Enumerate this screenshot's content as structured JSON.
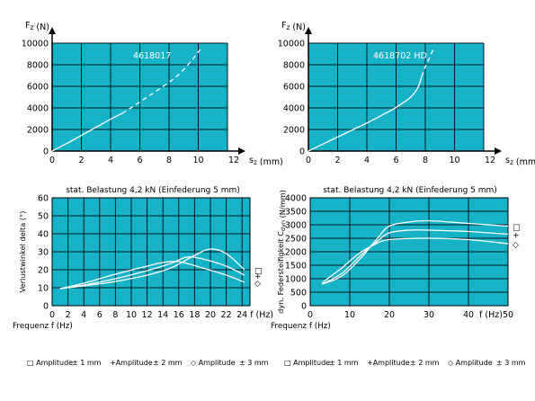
{
  "colors": {
    "plot_bg": "#16b2c8",
    "grid": "#0a1a20",
    "axis": "#000000",
    "curve": "#ffffff",
    "text": "#000000"
  },
  "legend_text": {
    "left": [
      "□ Amplitude",
      "± 1 mm",
      "+Amplitude",
      "± 2 mm",
      "◇ Amplitude",
      "± 3 mm"
    ],
    "right": [
      "□ Amplitude",
      "± 1 mm",
      "+Amplitude",
      "± 2 mm",
      "◇ Amplitude",
      "± 3 mm"
    ]
  },
  "chart_data": [
    {
      "type": "line",
      "ylabel": "F_z (N)",
      "xlabel": "s_z (mm)",
      "annotation": "4618017",
      "xlim": [
        0,
        12
      ],
      "ylim": [
        0,
        10000
      ],
      "xticks": [
        0,
        2,
        4,
        6,
        8,
        10,
        12
      ],
      "yticks": [
        0,
        2000,
        4000,
        6000,
        8000,
        10000
      ],
      "series": [
        {
          "style": "solid",
          "points": [
            [
              0,
              0
            ],
            [
              1,
              700
            ],
            [
              2,
              1450
            ],
            [
              3,
              2200
            ],
            [
              4,
              2950
            ],
            [
              4.8,
              3500
            ]
          ]
        },
        {
          "style": "dashed",
          "points": [
            [
              4.8,
              3500
            ],
            [
              5.5,
              4100
            ],
            [
              6.5,
              5000
            ],
            [
              7.5,
              5900
            ],
            [
              8.5,
              6900
            ],
            [
              9.3,
              8000
            ],
            [
              9.9,
              9000
            ],
            [
              10.3,
              9700
            ]
          ]
        }
      ]
    },
    {
      "type": "line",
      "ylabel": "F_z (N)",
      "xlabel": "s_z (mm)",
      "annotation": "4618702 HD",
      "xlim": [
        0,
        12
      ],
      "ylim": [
        0,
        10000
      ],
      "xticks": [
        0,
        2,
        4,
        6,
        8,
        10,
        12
      ],
      "yticks": [
        0,
        2000,
        4000,
        6000,
        8000,
        10000
      ],
      "series": [
        {
          "style": "solid",
          "points": [
            [
              0,
              0
            ],
            [
              1,
              650
            ],
            [
              2,
              1300
            ],
            [
              3,
              1950
            ],
            [
              4,
              2600
            ],
            [
              5,
              3300
            ],
            [
              6,
              4050
            ],
            [
              7,
              5000
            ],
            [
              7.5,
              5900
            ],
            [
              7.75,
              6900
            ]
          ]
        },
        {
          "style": "dashed",
          "points": [
            [
              7.75,
              6900
            ],
            [
              8.0,
              7800
            ],
            [
              8.3,
              8700
            ],
            [
              8.6,
              9600
            ]
          ]
        }
      ]
    },
    {
      "type": "line",
      "title": "stat. Belastung 4,2 kN (Einfederung 5 mm)",
      "ylabel": "Verlustwinkel delta (°)",
      "xlabel": "Frequenz f (Hz)",
      "xunit": "f (Hz)",
      "xlim": [
        0,
        25
      ],
      "ylim": [
        0,
        60
      ],
      "xticks": [
        0,
        2,
        4,
        6,
        8,
        10,
        12,
        14,
        16,
        18,
        20,
        22,
        24
      ],
      "yticks": [
        0,
        10,
        20,
        30,
        40,
        50,
        60
      ],
      "end_markers": [
        "□",
        "+",
        "◇"
      ],
      "series": [
        {
          "name": "Amplitude ± 1 mm",
          "points": [
            [
              1,
              9.5
            ],
            [
              4,
              11
            ],
            [
              8,
              13.5
            ],
            [
              12,
              17
            ],
            [
              15,
              21
            ],
            [
              18,
              28
            ],
            [
              20,
              31.5
            ],
            [
              22,
              29
            ],
            [
              24.3,
              20
            ]
          ]
        },
        {
          "name": "Amplitude ± 2 mm",
          "points": [
            [
              1,
              9.5
            ],
            [
              4,
              11.5
            ],
            [
              8,
              15
            ],
            [
              12,
              19.5
            ],
            [
              15,
              23.5
            ],
            [
              17,
              27
            ],
            [
              19,
              26
            ],
            [
              22,
              22
            ],
            [
              24.3,
              17
            ]
          ]
        },
        {
          "name": "Amplitude ± 3 mm",
          "points": [
            [
              1,
              9.5
            ],
            [
              4,
              12.5
            ],
            [
              8,
              17.5
            ],
            [
              12,
              22
            ],
            [
              14,
              24
            ],
            [
              16,
              24.5
            ],
            [
              19,
              21
            ],
            [
              22,
              17
            ],
            [
              24.3,
              13
            ]
          ]
        }
      ]
    },
    {
      "type": "line",
      "title": "stat. Belastung 4,2 kN (Einfederung 5 mm)",
      "ylabel": "dyn. Federsteifigkeit C_dyn (N/mm)",
      "xlabel": "Frequenz f (Hz)",
      "xunit": "f (Hz)",
      "xlim": [
        0,
        50
      ],
      "ylim": [
        0,
        4000
      ],
      "xticks": [
        0,
        10,
        20,
        30,
        40,
        50
      ],
      "yticks": [
        0,
        500,
        1000,
        1500,
        2000,
        2500,
        3000,
        3500,
        4000
      ],
      "end_markers": [
        "□",
        "+",
        "◇"
      ],
      "series": [
        {
          "name": "Amplitude ± 1 mm",
          "points": [
            [
              3,
              800
            ],
            [
              8,
              1100
            ],
            [
              13,
              1800
            ],
            [
              17,
              2500
            ],
            [
              20,
              2950
            ],
            [
              25,
              3100
            ],
            [
              30,
              3150
            ],
            [
              40,
              3050
            ],
            [
              50,
              2950
            ]
          ]
        },
        {
          "name": "Amplitude ± 2 mm",
          "points": [
            [
              3,
              800
            ],
            [
              8,
              1200
            ],
            [
              13,
              1900
            ],
            [
              17,
              2400
            ],
            [
              20,
              2700
            ],
            [
              25,
              2800
            ],
            [
              30,
              2800
            ],
            [
              40,
              2750
            ],
            [
              50,
              2650
            ]
          ]
        },
        {
          "name": "Amplitude ± 3 mm",
          "points": [
            [
              3,
              850
            ],
            [
              8,
              1400
            ],
            [
              12,
              1900
            ],
            [
              16,
              2250
            ],
            [
              20,
              2450
            ],
            [
              30,
              2500
            ],
            [
              40,
              2450
            ],
            [
              50,
              2300
            ]
          ]
        }
      ]
    }
  ]
}
